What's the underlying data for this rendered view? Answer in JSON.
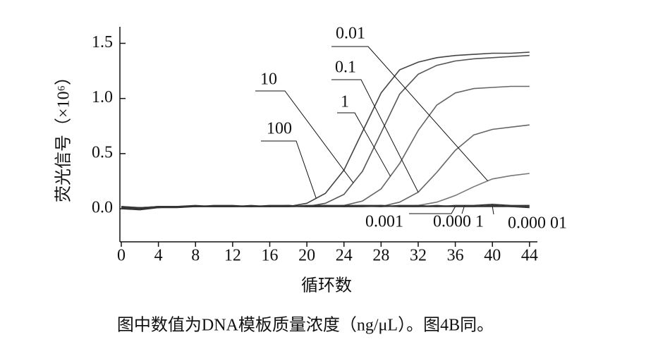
{
  "chart_data": {
    "type": "line",
    "y_label": "荧光信号（×10⁶）",
    "x_label": "循环数",
    "caption": "图中数值为DNA模板质量浓度（ng/μL）。图4B同。",
    "x": [
      0,
      2,
      4,
      6,
      8,
      10,
      12,
      14,
      16,
      18,
      20,
      22,
      24,
      26,
      28,
      30,
      32,
      34,
      36,
      38,
      40,
      42,
      44
    ],
    "xlim": [
      0,
      45
    ],
    "xticks": [
      0,
      4,
      8,
      12,
      16,
      20,
      24,
      28,
      32,
      36,
      40,
      44
    ],
    "ylim": [
      -0.3,
      1.65
    ],
    "yticks": [
      {
        "value": 0,
        "label": "0.0"
      },
      0.5,
      {
        "value": 1,
        "label": "1.0"
      },
      1.5
    ],
    "series": [
      {
        "name": "100",
        "color": "#444444",
        "values": [
          0.0,
          0.01,
          0.02,
          0.02,
          0.02,
          0.02,
          0.02,
          0.02,
          0.02,
          0.02,
          0.05,
          0.14,
          0.35,
          0.7,
          1.05,
          1.26,
          1.33,
          1.37,
          1.39,
          1.4,
          1.41,
          1.41,
          1.42
        ]
      },
      {
        "name": "10",
        "color": "#555555",
        "values": [
          0.01,
          0.01,
          0.02,
          0.02,
          0.02,
          0.02,
          0.02,
          0.02,
          0.02,
          0.02,
          0.02,
          0.05,
          0.13,
          0.34,
          0.69,
          1.04,
          1.22,
          1.3,
          1.34,
          1.36,
          1.37,
          1.38,
          1.39
        ]
      },
      {
        "name": "1",
        "color": "#666666",
        "values": [
          0.02,
          0.01,
          0.02,
          0.02,
          0.02,
          0.02,
          0.02,
          0.02,
          0.02,
          0.02,
          0.02,
          0.02,
          0.03,
          0.07,
          0.18,
          0.41,
          0.71,
          0.94,
          1.05,
          1.09,
          1.1,
          1.11,
          1.11
        ]
      },
      {
        "name": "0.1",
        "color": "#666666",
        "values": [
          0.01,
          0.0,
          0.01,
          0.02,
          0.02,
          0.02,
          0.02,
          0.02,
          0.02,
          0.02,
          0.02,
          0.02,
          0.02,
          0.02,
          0.02,
          0.06,
          0.15,
          0.33,
          0.53,
          0.67,
          0.72,
          0.74,
          0.76
        ]
      },
      {
        "name": "0.01",
        "color": "#777777",
        "values": [
          0.0,
          0.01,
          0.01,
          0.02,
          0.02,
          0.02,
          0.02,
          0.02,
          0.02,
          0.02,
          0.02,
          0.02,
          0.02,
          0.02,
          0.02,
          0.02,
          0.03,
          0.06,
          0.12,
          0.2,
          0.27,
          0.3,
          0.32
        ]
      },
      {
        "name": "0.001",
        "color": "#333333",
        "values": [
          0.01,
          0.0,
          0.02,
          0.02,
          0.03,
          0.02,
          0.02,
          0.03,
          0.02,
          0.02,
          0.03,
          0.03,
          0.02,
          0.02,
          0.03,
          0.02,
          0.02,
          0.02,
          0.02,
          0.02,
          0.03,
          0.02,
          0.02
        ]
      },
      {
        "name": "0.000 1",
        "color": "#333333",
        "values": [
          0.02,
          0.01,
          0.01,
          0.02,
          0.02,
          0.03,
          0.03,
          0.02,
          0.03,
          0.03,
          0.02,
          0.03,
          0.03,
          0.03,
          0.02,
          0.03,
          0.03,
          0.02,
          0.03,
          0.03,
          0.04,
          0.03,
          0.03
        ]
      },
      {
        "name": "0.000 01",
        "color": "#333333",
        "values": [
          0.0,
          -0.01,
          0.01,
          0.01,
          0.02,
          0.02,
          0.02,
          0.02,
          0.02,
          0.03,
          0.02,
          0.02,
          0.02,
          0.03,
          0.03,
          0.02,
          0.02,
          0.03,
          0.02,
          0.02,
          0.02,
          0.02,
          0.01
        ]
      }
    ]
  }
}
